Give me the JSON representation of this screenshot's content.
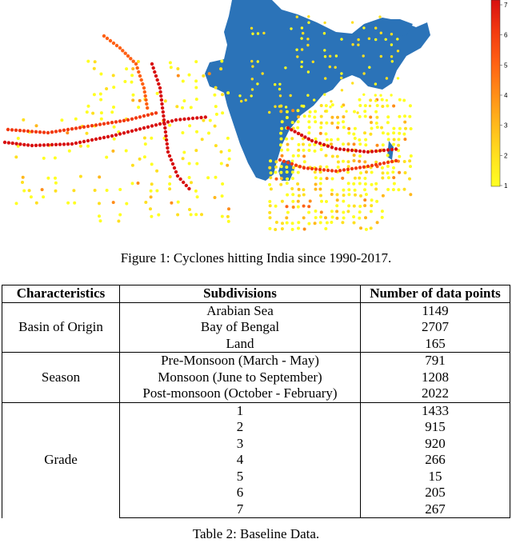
{
  "figure": {
    "caption": "Figure 1: Cyclones hitting India since 1990-2017.",
    "colorbar": {
      "ticks": [
        "1",
        "2",
        "3",
        "4",
        "5",
        "6",
        "7"
      ],
      "colors": [
        "#ffff22",
        "#ffe020",
        "#ffb81c",
        "#ff8c18",
        "#ff6014",
        "#f23a10",
        "#d81010"
      ]
    },
    "land_color": "#2b73b8"
  },
  "table": {
    "caption": "Table 2: Baseline Data.",
    "headers": [
      "Characteristics",
      "Subdivisions",
      "Number of data points"
    ],
    "groups": [
      {
        "name": "Basin of Origin",
        "rows": [
          [
            "Arabian Sea",
            "1149"
          ],
          [
            "Bay of Bengal",
            "2707"
          ],
          [
            "Land",
            "165"
          ]
        ]
      },
      {
        "name": "Season",
        "rows": [
          [
            "Pre-Monsoon (March - May)",
            "791"
          ],
          [
            "Monsoon (June to September)",
            "1208"
          ],
          [
            "Post-monsoon (October - February)",
            "2022"
          ]
        ]
      },
      {
        "name": "Grade",
        "rows": [
          [
            "1",
            "1433"
          ],
          [
            "2",
            "915"
          ],
          [
            "3",
            "920"
          ],
          [
            "4",
            "266"
          ],
          [
            "5",
            "15"
          ],
          [
            "6",
            "205"
          ],
          [
            "7",
            "267"
          ]
        ]
      }
    ]
  }
}
